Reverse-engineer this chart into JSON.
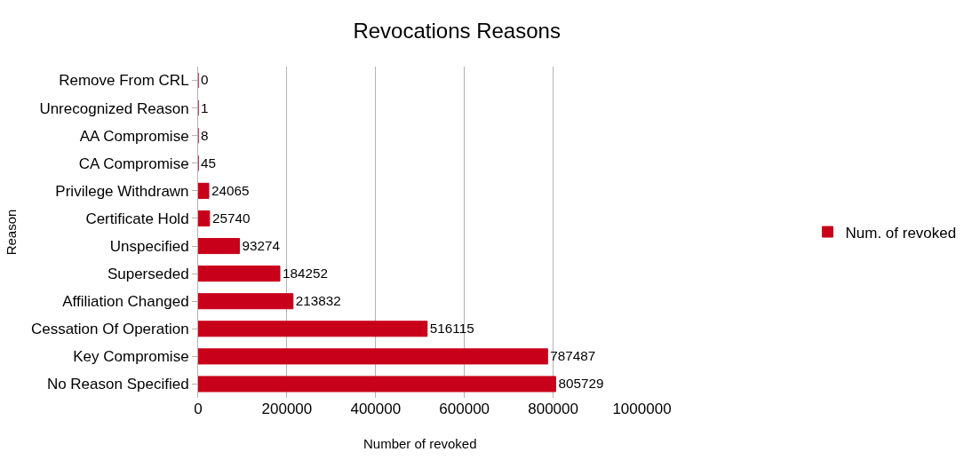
{
  "chart_data": {
    "type": "bar",
    "orientation": "horizontal",
    "title": "Revocations Reasons",
    "xlabel": "Number of revoked",
    "ylabel": "Reason",
    "categories": [
      "Remove From CRL",
      "Unrecognized Reason",
      "AA Compromise",
      "CA Compromise",
      "Privilege Withdrawn",
      "Certificate Hold",
      "Unspecified",
      "Superseded",
      "Affiliation Changed",
      "Cessation Of Operation",
      "Key Compromise",
      "No Reason Specified"
    ],
    "series": [
      {
        "name": "Num. of revoked",
        "color": "#c9001a",
        "values": [
          0,
          1,
          8,
          45,
          24065,
          25740,
          93274,
          184252,
          213832,
          516115,
          787487,
          805729
        ]
      }
    ],
    "xlim": [
      0,
      1000000
    ],
    "xticks": [
      0,
      200000,
      400000,
      600000,
      800000,
      1000000
    ],
    "grid": "x",
    "legend": "right",
    "data_labels": true
  }
}
